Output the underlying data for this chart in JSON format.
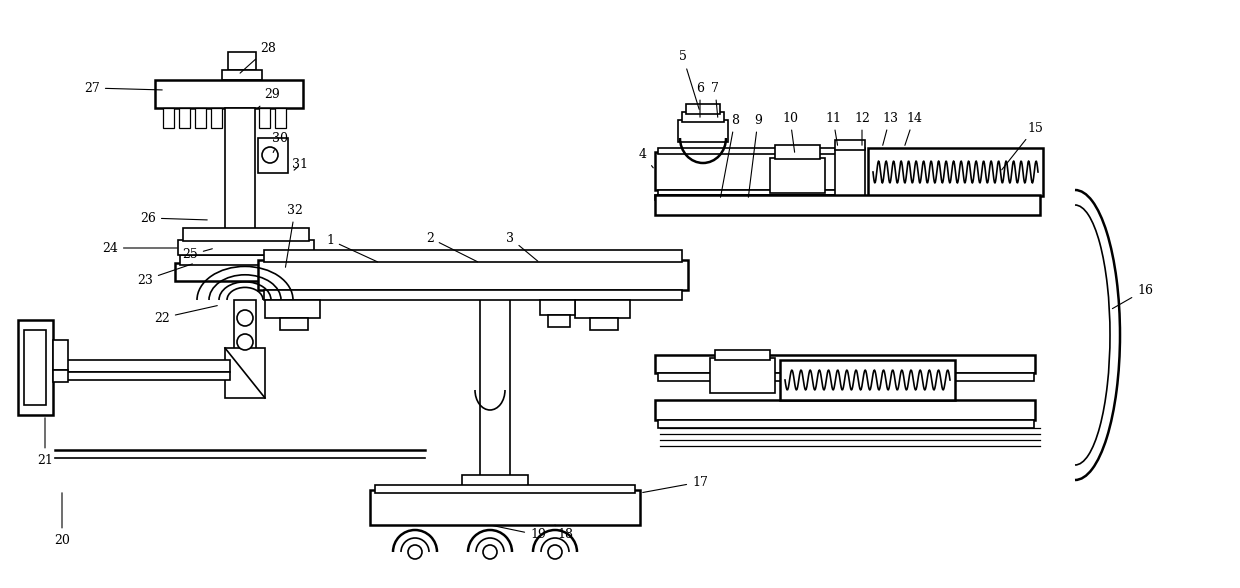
{
  "bg_color": "#ffffff",
  "lc": "#000000",
  "lw": 1.2,
  "lw2": 1.8,
  "figsize": [
    12.4,
    5.88
  ],
  "dpi": 100,
  "xlim": [
    0,
    1240
  ],
  "ylim": [
    0,
    588
  ]
}
